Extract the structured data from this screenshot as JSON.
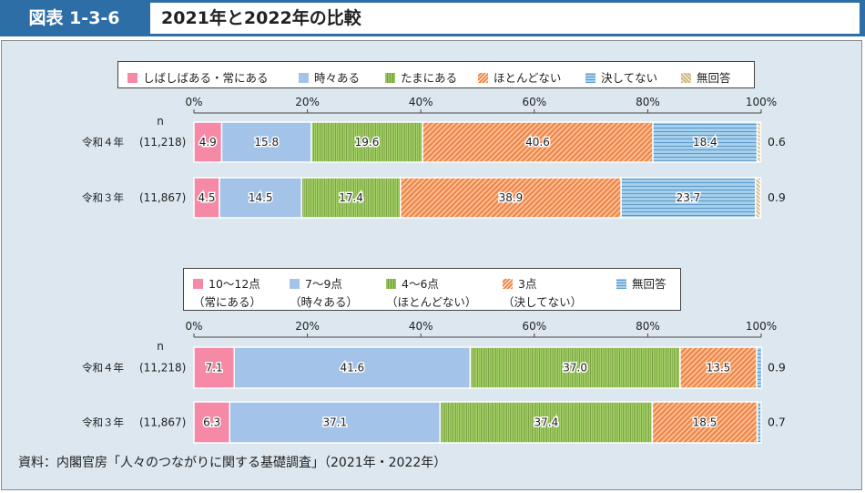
{
  "header": {
    "badge": "図表 1-3-6",
    "title": "2021年と2022年の比較"
  },
  "colors": {
    "header_blue": "#2e6ea6",
    "panel_bg": "#dce7ef",
    "pink": "#f589a6",
    "light_blue": "#a3c3e8",
    "green": "#98c55c",
    "orange": "#f0894a",
    "stripe_blue": "#8fc0e3",
    "khaki": "#cdb77a"
  },
  "source": "資料：内閣官房「人々のつながりに関する基礎調査」（2021年・2022年）",
  "chart_data": [
    {
      "type": "bar",
      "orientation": "horizontal-stacked-100",
      "xlim": [
        0,
        100
      ],
      "ticks": [
        "0%",
        "20%",
        "40%",
        "60%",
        "80%",
        "100%"
      ],
      "n_label": "n",
      "categories": [
        "令和４年",
        "令和３年"
      ],
      "n_values": [
        "(11,218)",
        "(11,867)"
      ],
      "legend_placement": "top",
      "series": [
        {
          "name": "しばしばある・常にある",
          "values": [
            4.9,
            4.5
          ],
          "pattern": "solid",
          "color_key": "pink"
        },
        {
          "name": "時々ある",
          "values": [
            15.8,
            14.5
          ],
          "pattern": "solid",
          "color_key": "light_blue"
        },
        {
          "name": "たまにある",
          "values": [
            19.6,
            17.4
          ],
          "pattern": "vertical",
          "color_key": "green"
        },
        {
          "name": "ほとんどない",
          "values": [
            40.6,
            38.9
          ],
          "pattern": "diagonal",
          "color_key": "orange"
        },
        {
          "name": "決してない",
          "values": [
            18.4,
            23.7
          ],
          "pattern": "horizontal",
          "color_key": "stripe_blue"
        },
        {
          "name": "無回答",
          "values": [
            0.6,
            0.9
          ],
          "pattern": "diagonal",
          "color_key": "khaki"
        }
      ]
    },
    {
      "type": "bar",
      "orientation": "horizontal-stacked-100",
      "xlim": [
        0,
        100
      ],
      "ticks": [
        "0%",
        "20%",
        "40%",
        "60%",
        "80%",
        "100%"
      ],
      "n_label": "n",
      "categories": [
        "令和４年",
        "令和３年"
      ],
      "n_values": [
        "(11,218)",
        "(11,867)"
      ],
      "legend_placement": "top",
      "series": [
        {
          "name": "10～12点",
          "sub": "（常にある）",
          "values": [
            7.1,
            6.3
          ],
          "pattern": "solid",
          "color_key": "pink"
        },
        {
          "name": "7～9点",
          "sub": "（時々ある）",
          "values": [
            41.6,
            37.1
          ],
          "pattern": "solid",
          "color_key": "light_blue"
        },
        {
          "name": "4～6点",
          "sub": "（ほとんどない）",
          "values": [
            37.0,
            37.4
          ],
          "pattern": "vertical",
          "color_key": "green"
        },
        {
          "name": "3点",
          "sub": "（決してない）",
          "values": [
            13.5,
            18.5
          ],
          "pattern": "diagonal",
          "color_key": "orange"
        },
        {
          "name": "無回答",
          "sub": "",
          "values": [
            0.9,
            0.7
          ],
          "pattern": "horizontal",
          "color_key": "stripe_blue"
        }
      ]
    }
  ]
}
